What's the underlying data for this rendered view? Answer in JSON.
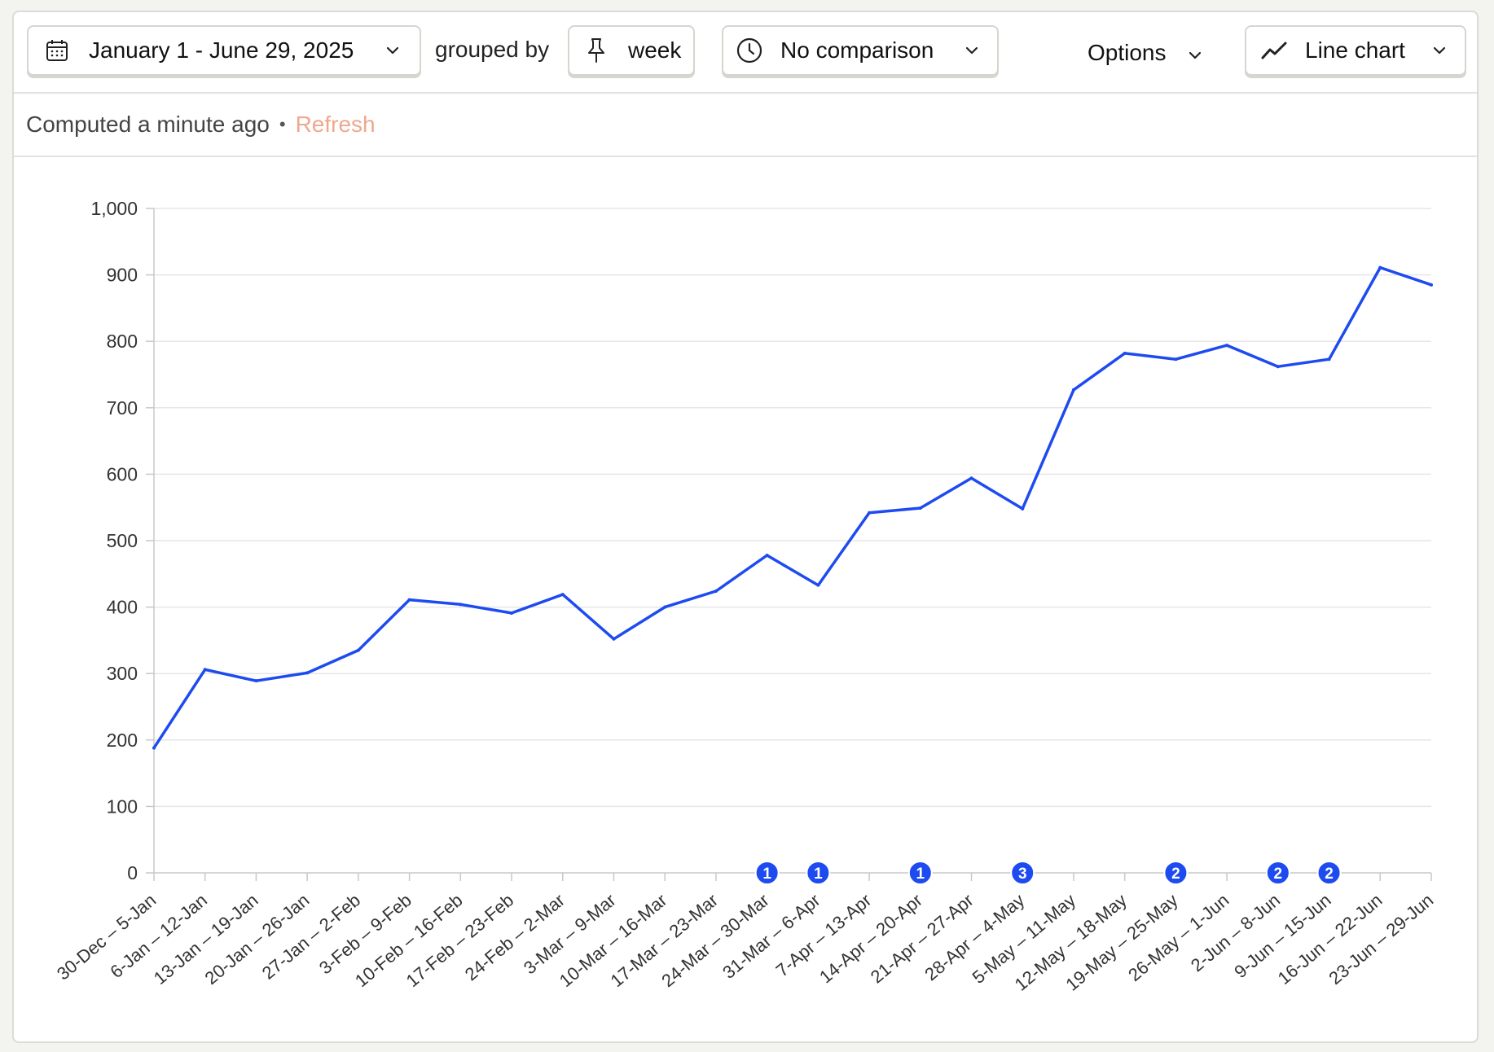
{
  "toolbar": {
    "date_range": "January 1 - June 29, 2025",
    "grouped_by_label": "grouped by",
    "interval": "week",
    "comparison": "No comparison",
    "options_label": "Options",
    "chart_type_label": "Line chart",
    "icons": {
      "date": "calendar-icon",
      "interval": "pin-icon",
      "comparison": "clock-icon",
      "chart_type": "line-chart-icon",
      "dropdown": "chevron-down-icon"
    }
  },
  "status": {
    "computed_text": "Computed a minute ago",
    "separator": "•",
    "refresh_label": "Refresh"
  },
  "colors": {
    "line": "#1d4bf0",
    "annotation_badge": "#1d4bf0",
    "refresh": "#eea88c",
    "grid": "#e6e6e6"
  },
  "chart_data": {
    "type": "line",
    "title": "",
    "xlabel": "",
    "ylabel": "",
    "ylim": [
      0,
      1000
    ],
    "yticks": [
      "0",
      "100",
      "200",
      "300",
      "400",
      "500",
      "600",
      "700",
      "800",
      "900",
      "1,000"
    ],
    "grid": true,
    "legend": "none",
    "categories": [
      "30-Dec – 5-Jan",
      "6-Jan – 12-Jan",
      "13-Jan – 19-Jan",
      "20-Jan – 26-Jan",
      "27-Jan – 2-Feb",
      "3-Feb – 9-Feb",
      "10-Feb – 16-Feb",
      "17-Feb – 23-Feb",
      "24-Feb – 2-Mar",
      "3-Mar – 9-Mar",
      "10-Mar – 16-Mar",
      "17-Mar – 23-Mar",
      "24-Mar – 30-Mar",
      "31-Mar – 6-Apr",
      "7-Apr – 13-Apr",
      "14-Apr – 20-Apr",
      "21-Apr – 27-Apr",
      "28-Apr – 4-May",
      "5-May – 11-May",
      "12-May – 18-May",
      "19-May – 25-May",
      "26-May – 1-Jun",
      "2-Jun – 8-Jun",
      "9-Jun – 15-Jun",
      "16-Jun – 22-Jun",
      "23-Jun – 29-Jun"
    ],
    "series": [
      {
        "values": [
          188,
          306,
          289,
          301,
          335,
          411,
          404,
          391,
          419,
          352,
          400,
          424,
          478,
          433,
          542,
          549,
          594,
          548,
          727,
          782,
          773,
          794,
          762,
          773,
          911,
          885
        ]
      }
    ],
    "annotations": [
      {
        "category": "24-Mar – 30-Mar",
        "count": "1"
      },
      {
        "category": "31-Mar – 6-Apr",
        "count": "1"
      },
      {
        "category": "14-Apr – 20-Apr",
        "count": "1"
      },
      {
        "category": "28-Apr – 4-May",
        "count": "3"
      },
      {
        "category": "19-May – 25-May",
        "count": "2"
      },
      {
        "category": "2-Jun – 8-Jun",
        "count": "2"
      },
      {
        "category": "9-Jun – 15-Jun",
        "count": "2"
      }
    ]
  }
}
